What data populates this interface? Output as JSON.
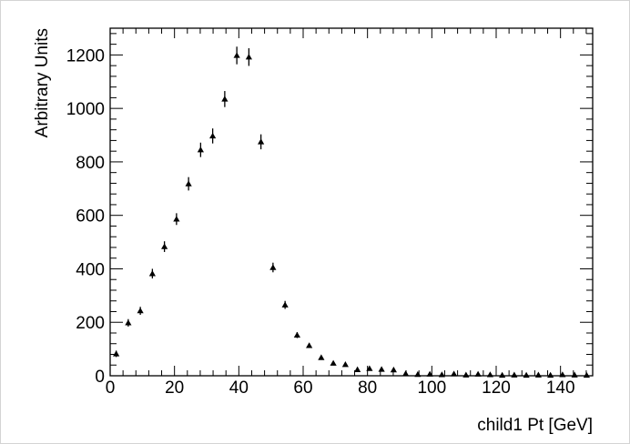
{
  "chart_data": {
    "type": "scatter",
    "xlabel": "child1 Pt [GeV]",
    "ylabel": "Arbitrary Units",
    "xlim": [
      0,
      150
    ],
    "ylim": [
      0,
      1300
    ],
    "x_ticks": [
      0,
      20,
      40,
      60,
      80,
      100,
      120,
      140
    ],
    "y_ticks": [
      0,
      200,
      400,
      600,
      800,
      1000,
      1200
    ],
    "grid": false,
    "legend": "none",
    "marker": "triangle-up",
    "marker_color": "#000000",
    "points": [
      {
        "x": 1.875,
        "y": 82,
        "err": 12
      },
      {
        "x": 5.625,
        "y": 198,
        "err": 14
      },
      {
        "x": 9.375,
        "y": 243,
        "err": 15
      },
      {
        "x": 13.125,
        "y": 382,
        "err": 18
      },
      {
        "x": 16.875,
        "y": 483,
        "err": 20
      },
      {
        "x": 20.625,
        "y": 586,
        "err": 22
      },
      {
        "x": 24.375,
        "y": 718,
        "err": 25
      },
      {
        "x": 28.125,
        "y": 845,
        "err": 27
      },
      {
        "x": 31.875,
        "y": 897,
        "err": 28
      },
      {
        "x": 35.625,
        "y": 1035,
        "err": 30
      },
      {
        "x": 39.375,
        "y": 1198,
        "err": 33
      },
      {
        "x": 43.125,
        "y": 1192,
        "err": 33
      },
      {
        "x": 46.875,
        "y": 875,
        "err": 28
      },
      {
        "x": 50.625,
        "y": 405,
        "err": 18
      },
      {
        "x": 54.375,
        "y": 265,
        "err": 15
      },
      {
        "x": 58.125,
        "y": 152,
        "err": 11
      },
      {
        "x": 61.875,
        "y": 113,
        "err": 9
      },
      {
        "x": 65.625,
        "y": 68,
        "err": 7
      },
      {
        "x": 69.375,
        "y": 47,
        "err": 6
      },
      {
        "x": 73.125,
        "y": 42,
        "err": 6
      },
      {
        "x": 76.875,
        "y": 23,
        "err": 4
      },
      {
        "x": 80.625,
        "y": 27,
        "err": 5
      },
      {
        "x": 84.375,
        "y": 24,
        "err": 4
      },
      {
        "x": 88.125,
        "y": 22,
        "err": 4
      },
      {
        "x": 91.875,
        "y": 8,
        "err": 3
      },
      {
        "x": 95.625,
        "y": 5,
        "err": 2
      },
      {
        "x": 99.375,
        "y": 6,
        "err": 2
      },
      {
        "x": 103.125,
        "y": 4,
        "err": 2
      },
      {
        "x": 106.875,
        "y": 7,
        "err": 2
      },
      {
        "x": 110.625,
        "y": 3,
        "err": 2
      },
      {
        "x": 114.375,
        "y": 6,
        "err": 2
      },
      {
        "x": 118.125,
        "y": 4,
        "err": 2
      },
      {
        "x": 121.875,
        "y": 2,
        "err": 1
      },
      {
        "x": 125.625,
        "y": 3,
        "err": 2
      },
      {
        "x": 129.375,
        "y": 2,
        "err": 1
      },
      {
        "x": 133.125,
        "y": 3,
        "err": 2
      },
      {
        "x": 136.875,
        "y": 2,
        "err": 1
      },
      {
        "x": 140.625,
        "y": 4,
        "err": 2
      },
      {
        "x": 144.375,
        "y": 3,
        "err": 2
      },
      {
        "x": 148.125,
        "y": 2,
        "err": 1
      }
    ]
  }
}
